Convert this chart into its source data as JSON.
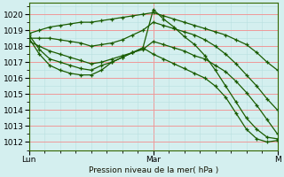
{
  "xlabel": "Pression niveau de la mer( hPa )",
  "bg_color": "#d4efef",
  "grid_major_color": "#ee9999",
  "grid_minor_color": "#b8e0e0",
  "line_color": "#1a5c00",
  "marker": "+",
  "ylim": [
    1011.5,
    1020.7
  ],
  "yticks": [
    1012,
    1013,
    1014,
    1015,
    1016,
    1017,
    1018,
    1019,
    1020
  ],
  "xlim": [
    0,
    96
  ],
  "xtick_pos": [
    0,
    48,
    96
  ],
  "xtick_labels": [
    "Lun",
    "Mar",
    "M"
  ],
  "lines": [
    {
      "x": [
        0,
        4,
        8,
        12,
        16,
        20,
        24,
        28,
        32,
        36,
        40,
        44,
        48,
        52,
        56,
        60,
        64,
        68,
        72,
        76,
        80,
        84,
        88,
        92,
        96
      ],
      "y": [
        1018.8,
        1019.0,
        1019.2,
        1019.3,
        1019.4,
        1019.5,
        1019.5,
        1019.6,
        1019.7,
        1019.8,
        1019.9,
        1020.0,
        1020.1,
        1019.9,
        1019.7,
        1019.5,
        1019.3,
        1019.1,
        1018.9,
        1018.7,
        1018.4,
        1018.1,
        1017.6,
        1017.0,
        1016.5
      ]
    },
    {
      "x": [
        0,
        4,
        8,
        12,
        16,
        20,
        24,
        28,
        32,
        36,
        40,
        44,
        48,
        52,
        56,
        60,
        64,
        68,
        72,
        76,
        80,
        84,
        88,
        92,
        96
      ],
      "y": [
        1018.5,
        1018.5,
        1018.5,
        1018.4,
        1018.3,
        1018.2,
        1018.0,
        1018.1,
        1018.2,
        1018.4,
        1018.7,
        1019.0,
        1019.5,
        1019.3,
        1019.1,
        1018.9,
        1018.7,
        1018.4,
        1018.0,
        1017.5,
        1016.9,
        1016.2,
        1015.5,
        1014.7,
        1014.0
      ]
    },
    {
      "x": [
        0,
        4,
        8,
        12,
        16,
        20,
        24,
        28,
        32,
        36,
        40,
        44,
        48,
        52,
        56,
        60,
        64,
        68,
        72,
        76,
        80,
        84,
        88,
        92,
        96
      ],
      "y": [
        1018.3,
        1018.0,
        1017.7,
        1017.5,
        1017.3,
        1017.1,
        1016.9,
        1017.0,
        1017.2,
        1017.4,
        1017.6,
        1017.8,
        1018.3,
        1018.1,
        1017.9,
        1017.7,
        1017.4,
        1017.2,
        1016.8,
        1016.4,
        1015.8,
        1015.1,
        1014.3,
        1013.4,
        1012.5
      ]
    },
    {
      "x": [
        0,
        4,
        8,
        12,
        16,
        20,
        24,
        28,
        32,
        36,
        40,
        44,
        48,
        52,
        56,
        60,
        64,
        68,
        72,
        76,
        80,
        84,
        88,
        92,
        96
      ],
      "y": [
        1018.7,
        1017.8,
        1017.2,
        1017.0,
        1016.8,
        1016.6,
        1016.5,
        1016.8,
        1017.0,
        1017.3,
        1017.6,
        1017.9,
        1020.3,
        1019.7,
        1019.2,
        1018.6,
        1018.1,
        1017.4,
        1016.5,
        1015.5,
        1014.5,
        1013.5,
        1012.8,
        1012.3,
        1012.2
      ]
    },
    {
      "x": [
        0,
        4,
        8,
        12,
        16,
        20,
        24,
        28,
        32,
        36,
        40,
        44,
        48,
        52,
        56,
        60,
        64,
        68,
        72,
        76,
        80,
        84,
        88,
        92,
        96
      ],
      "y": [
        1018.5,
        1017.5,
        1016.8,
        1016.5,
        1016.3,
        1016.2,
        1016.2,
        1016.5,
        1017.0,
        1017.3,
        1017.6,
        1017.9,
        1017.5,
        1017.2,
        1016.9,
        1016.6,
        1016.3,
        1016.0,
        1015.5,
        1014.8,
        1013.8,
        1012.8,
        1012.2,
        1012.0,
        1012.1
      ]
    }
  ]
}
